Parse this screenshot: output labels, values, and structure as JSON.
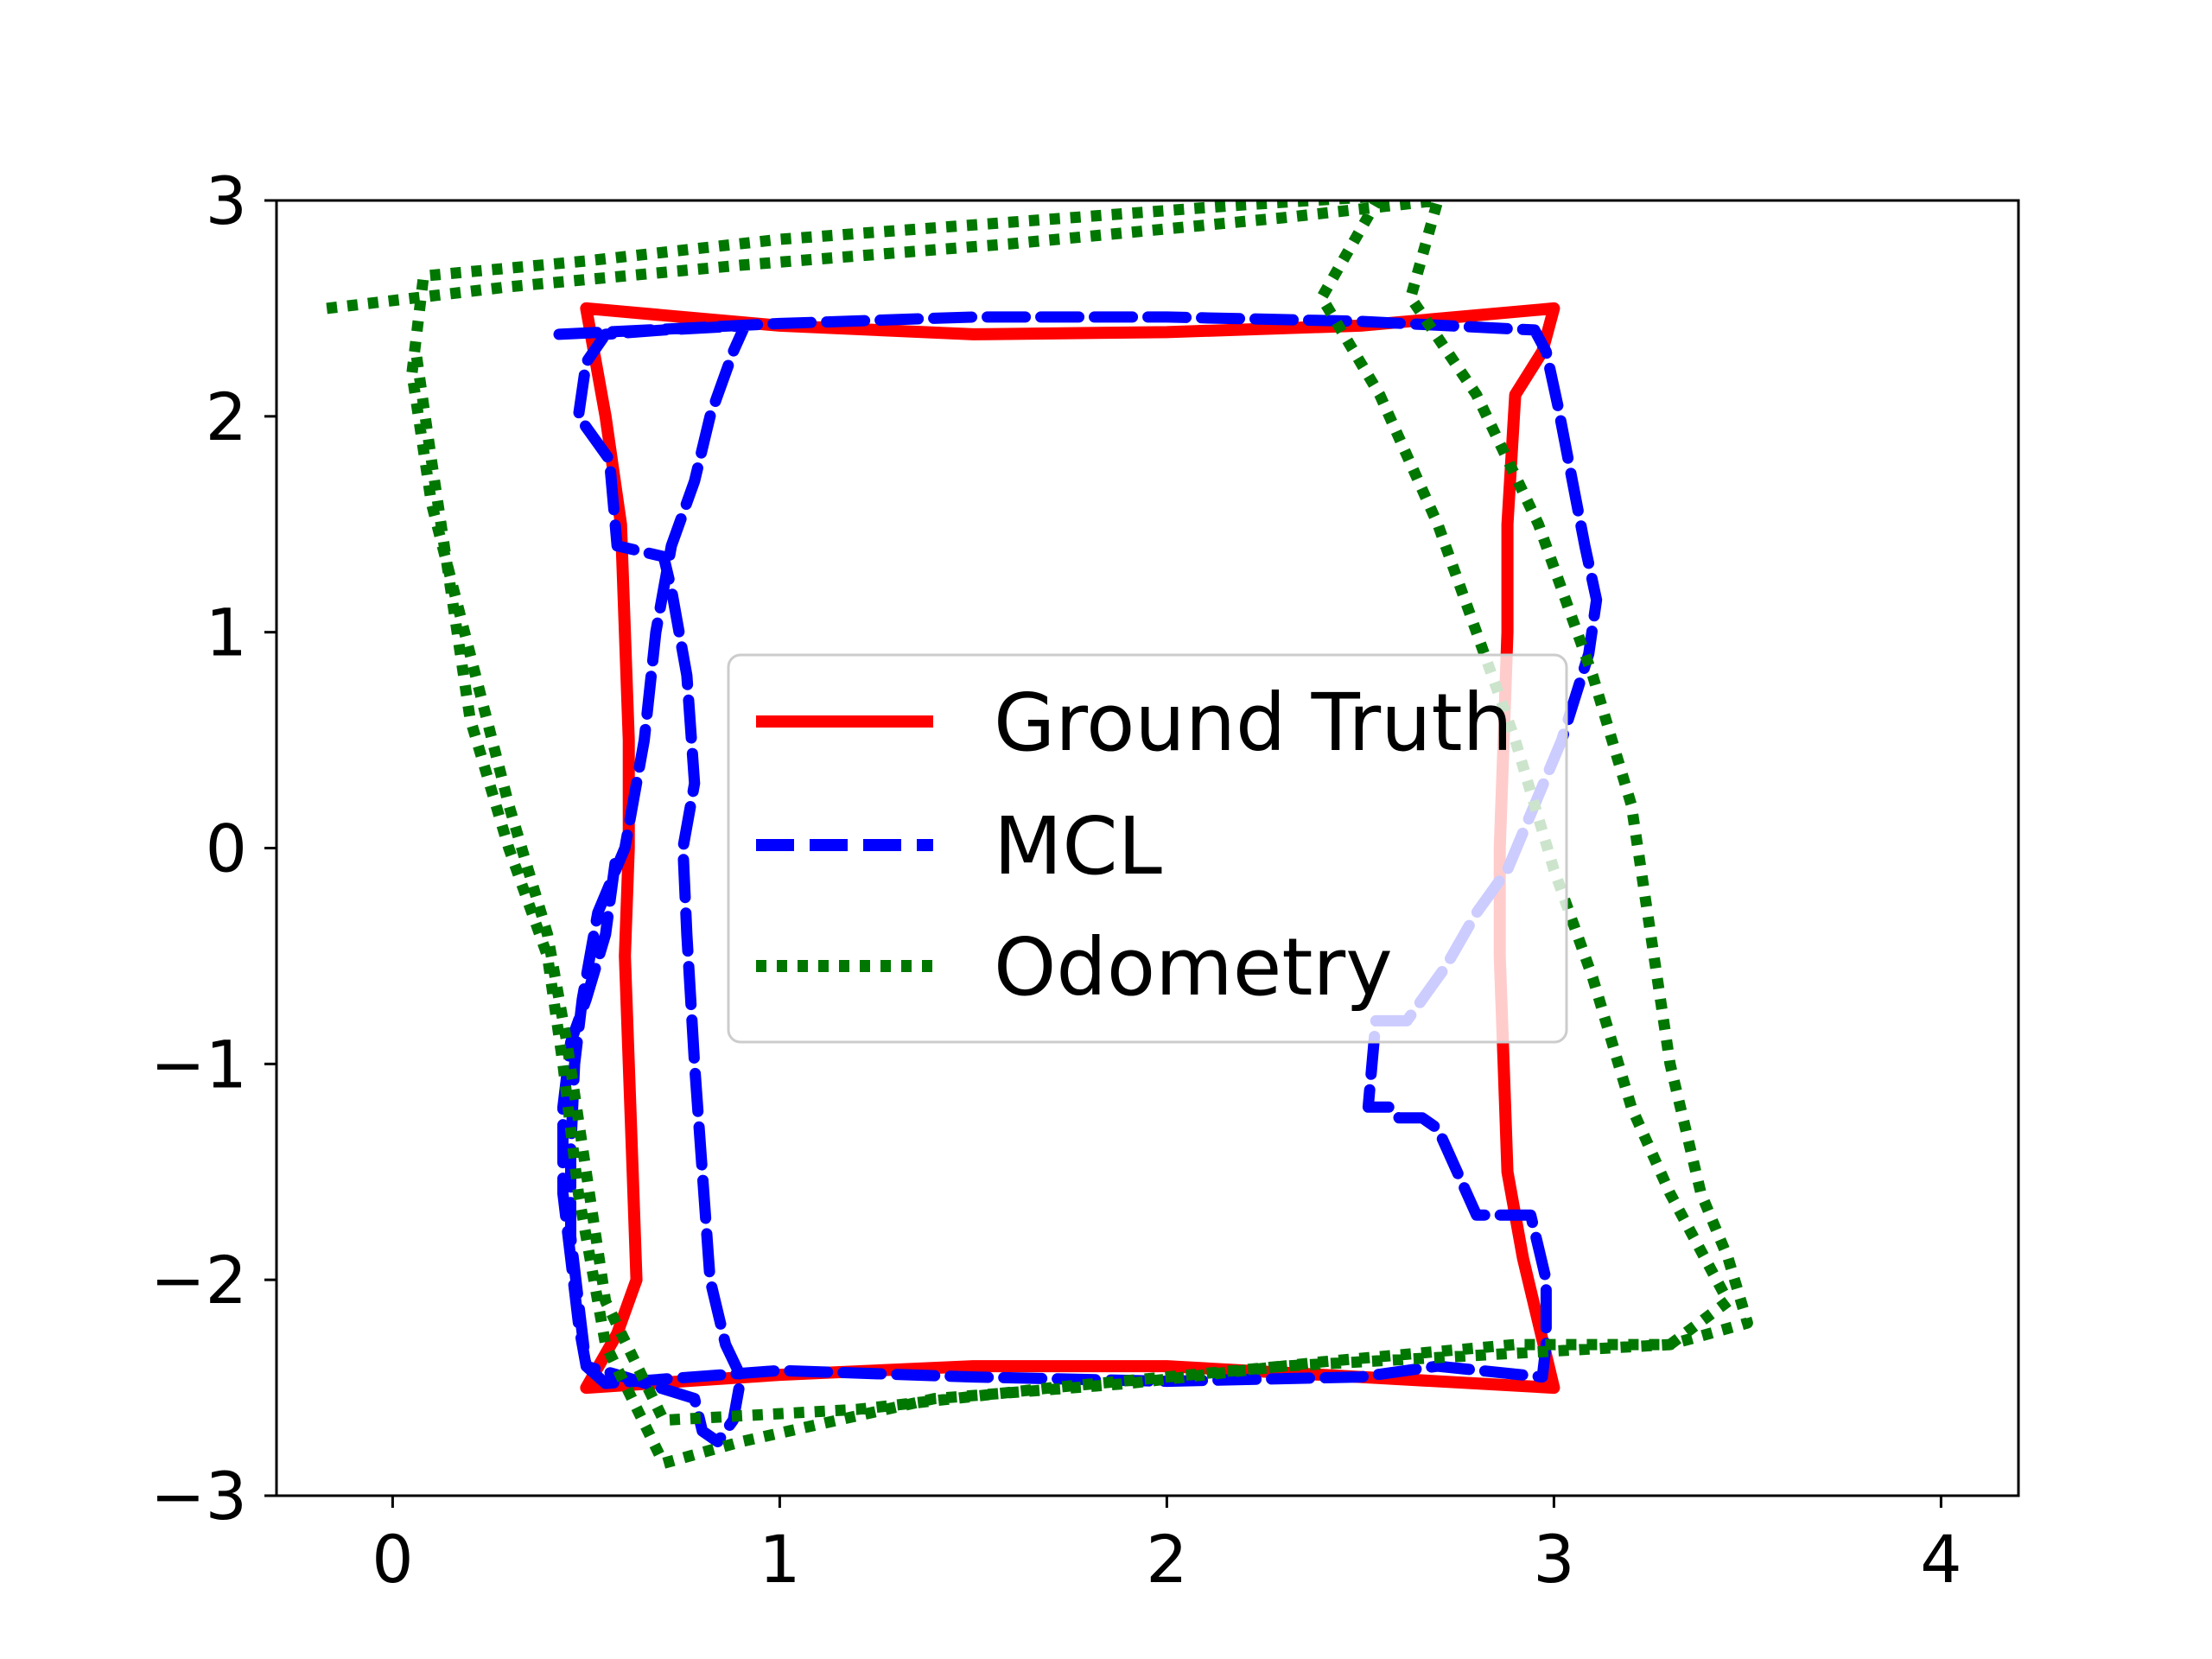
{
  "chart_data": {
    "type": "line",
    "title": "",
    "xlabel": "",
    "ylabel": "",
    "xlim": [
      -0.3,
      4.2
    ],
    "ylim": [
      -3,
      3
    ],
    "xticks": [
      0,
      1,
      2,
      3,
      4
    ],
    "yticks": [
      -3,
      -2,
      -1,
      0,
      1,
      2,
      3
    ],
    "xtick_labels": [
      "0",
      "1",
      "2",
      "3",
      "4"
    ],
    "ytick_labels": [
      "−3",
      "−2",
      "−1",
      "0",
      "1",
      "2",
      "3"
    ],
    "grid": false,
    "legend": {
      "placement": "center",
      "entries": [
        "Ground Truth",
        "MCL",
        "Odometry"
      ]
    },
    "series": [
      {
        "name": "Ground Truth",
        "color": "#ff0000",
        "style": "solid",
        "points": [
          [
            0.5,
            2.5
          ],
          [
            1.0,
            2.42
          ],
          [
            1.5,
            2.38
          ],
          [
            2.0,
            2.39
          ],
          [
            2.5,
            2.42
          ],
          [
            3.0,
            2.5
          ],
          [
            2.97,
            2.3
          ],
          [
            2.9,
            2.1
          ],
          [
            2.88,
            1.5
          ],
          [
            2.88,
            1.0
          ],
          [
            2.87,
            0.5
          ],
          [
            2.86,
            0.0
          ],
          [
            2.86,
            -0.5
          ],
          [
            2.87,
            -1.0
          ],
          [
            2.88,
            -1.5
          ],
          [
            2.92,
            -1.9
          ],
          [
            2.96,
            -2.2
          ],
          [
            3.0,
            -2.5
          ],
          [
            2.5,
            -2.45
          ],
          [
            2.0,
            -2.4
          ],
          [
            1.5,
            -2.4
          ],
          [
            1.0,
            -2.44
          ],
          [
            0.5,
            -2.5
          ],
          [
            0.58,
            -2.25
          ],
          [
            0.63,
            -2.0
          ],
          [
            0.62,
            -1.5
          ],
          [
            0.61,
            -1.0
          ],
          [
            0.6,
            -0.5
          ],
          [
            0.61,
            0.0
          ],
          [
            0.61,
            0.5
          ],
          [
            0.6,
            1.0
          ],
          [
            0.59,
            1.5
          ],
          [
            0.55,
            2.0
          ],
          [
            0.5,
            2.5
          ]
        ]
      },
      {
        "name": "MCL",
        "color": "#0000ff",
        "style": "dashed",
        "points": [
          [
            0.43,
            2.38
          ],
          [
            1.0,
            2.43
          ],
          [
            1.5,
            2.46
          ],
          [
            2.0,
            2.46
          ],
          [
            2.5,
            2.44
          ],
          [
            2.95,
            2.4
          ],
          [
            2.98,
            2.3
          ],
          [
            3.01,
            2.05
          ],
          [
            3.08,
            1.4
          ],
          [
            3.11,
            1.15
          ],
          [
            3.09,
            0.9
          ],
          [
            3.02,
            0.5
          ],
          [
            2.95,
            0.2
          ],
          [
            2.88,
            -0.1
          ],
          [
            2.8,
            -0.3
          ],
          [
            2.72,
            -0.55
          ],
          [
            2.62,
            -0.8
          ],
          [
            2.54,
            -0.8
          ],
          [
            2.52,
            -1.2
          ],
          [
            2.58,
            -1.2
          ],
          [
            2.6,
            -1.25
          ],
          [
            2.66,
            -1.25
          ],
          [
            2.7,
            -1.3
          ],
          [
            2.8,
            -1.7
          ],
          [
            2.94,
            -1.7
          ],
          [
            2.96,
            -1.85
          ],
          [
            2.98,
            -2.0
          ],
          [
            2.98,
            -2.3
          ],
          [
            2.97,
            -2.45
          ],
          [
            2.7,
            -2.4
          ],
          [
            2.5,
            -2.45
          ],
          [
            2.0,
            -2.47
          ],
          [
            1.5,
            -2.45
          ],
          [
            1.0,
            -2.42
          ],
          [
            0.55,
            -2.48
          ],
          [
            0.5,
            -2.4
          ],
          [
            0.48,
            -2.1
          ],
          [
            0.46,
            -1.8
          ],
          [
            0.46,
            -1.4
          ],
          [
            0.47,
            -1.0
          ],
          [
            0.49,
            -0.7
          ],
          [
            0.53,
            -0.3
          ],
          [
            0.6,
            0.0
          ],
          [
            0.65,
            0.5
          ],
          [
            0.68,
            1.0
          ],
          [
            0.72,
            1.4
          ],
          [
            0.78,
            1.7
          ],
          [
            0.82,
            2.0
          ],
          [
            0.88,
            2.3
          ],
          [
            0.91,
            2.42
          ],
          [
            0.7,
            2.4
          ],
          [
            0.55,
            2.38
          ],
          [
            0.5,
            2.25
          ],
          [
            0.48,
            2.0
          ],
          [
            0.56,
            1.8
          ],
          [
            0.58,
            1.4
          ],
          [
            0.7,
            1.35
          ],
          [
            0.72,
            1.2
          ],
          [
            0.76,
            0.8
          ],
          [
            0.78,
            0.3
          ],
          [
            0.75,
            0.0
          ],
          [
            0.76,
            -0.4
          ],
          [
            0.78,
            -1.0
          ],
          [
            0.8,
            -1.5
          ],
          [
            0.82,
            -2.0
          ],
          [
            0.86,
            -2.3
          ],
          [
            0.9,
            -2.45
          ],
          [
            0.88,
            -2.65
          ],
          [
            0.84,
            -2.75
          ],
          [
            0.8,
            -2.7
          ],
          [
            0.78,
            -2.55
          ],
          [
            0.6,
            -2.45
          ],
          [
            0.5,
            -2.4
          ],
          [
            0.48,
            -2.2
          ],
          [
            0.46,
            -1.9
          ],
          [
            0.44,
            -1.6
          ],
          [
            0.44,
            -1.2
          ],
          [
            0.46,
            -0.9
          ],
          [
            0.5,
            -0.7
          ],
          [
            0.55,
            -0.4
          ],
          [
            0.58,
            0.0
          ]
        ]
      },
      {
        "name": "Odometry",
        "color": "#007700",
        "style": "dotted",
        "points": [
          [
            -0.17,
            2.5
          ],
          [
            0.3,
            2.6
          ],
          [
            0.9,
            2.7
          ],
          [
            1.6,
            2.8
          ],
          [
            2.3,
            2.92
          ],
          [
            2.7,
            3.0
          ],
          [
            2.63,
            2.55
          ],
          [
            2.8,
            2.1
          ],
          [
            2.96,
            1.5
          ],
          [
            3.1,
            0.8
          ],
          [
            3.2,
            0.2
          ],
          [
            3.25,
            -0.4
          ],
          [
            3.3,
            -1.0
          ],
          [
            3.38,
            -1.6
          ],
          [
            3.45,
            -1.9
          ],
          [
            3.5,
            -2.2
          ],
          [
            3.3,
            -2.3
          ],
          [
            2.8,
            -2.35
          ],
          [
            2.3,
            -2.4
          ],
          [
            1.7,
            -2.5
          ],
          [
            1.2,
            -2.6
          ],
          [
            0.7,
            -2.65
          ],
          [
            0.55,
            -2.1
          ],
          [
            0.5,
            -1.5
          ],
          [
            0.45,
            -0.9
          ],
          [
            0.4,
            -0.4
          ],
          [
            0.3,
            0.2
          ],
          [
            0.2,
            0.9
          ],
          [
            0.1,
            1.6
          ],
          [
            0.05,
            2.2
          ],
          [
            0.08,
            2.65
          ],
          [
            0.5,
            2.72
          ],
          [
            1.0,
            2.82
          ],
          [
            1.6,
            2.9
          ],
          [
            2.2,
            2.98
          ],
          [
            2.55,
            3.02
          ],
          [
            2.4,
            2.55
          ],
          [
            2.55,
            2.1
          ],
          [
            2.7,
            1.5
          ],
          [
            2.8,
            1.0
          ],
          [
            2.9,
            0.5
          ],
          [
            3.0,
            -0.1
          ],
          [
            3.1,
            -0.6
          ],
          [
            3.2,
            -1.2
          ],
          [
            3.3,
            -1.6
          ],
          [
            3.45,
            -2.1
          ],
          [
            3.3,
            -2.3
          ],
          [
            2.9,
            -2.3
          ],
          [
            2.4,
            -2.38
          ],
          [
            1.9,
            -2.48
          ],
          [
            1.4,
            -2.55
          ],
          [
            0.9,
            -2.75
          ],
          [
            0.7,
            -2.85
          ],
          [
            0.55,
            -2.3
          ],
          [
            0.48,
            -1.6
          ],
          [
            0.44,
            -1.0
          ],
          [
            0.4,
            -0.5
          ],
          [
            0.3,
            0.0
          ],
          [
            0.2,
            0.6
          ],
          [
            0.15,
            1.2
          ],
          [
            0.1,
            1.8
          ],
          [
            0.06,
            2.3
          ]
        ]
      }
    ]
  }
}
